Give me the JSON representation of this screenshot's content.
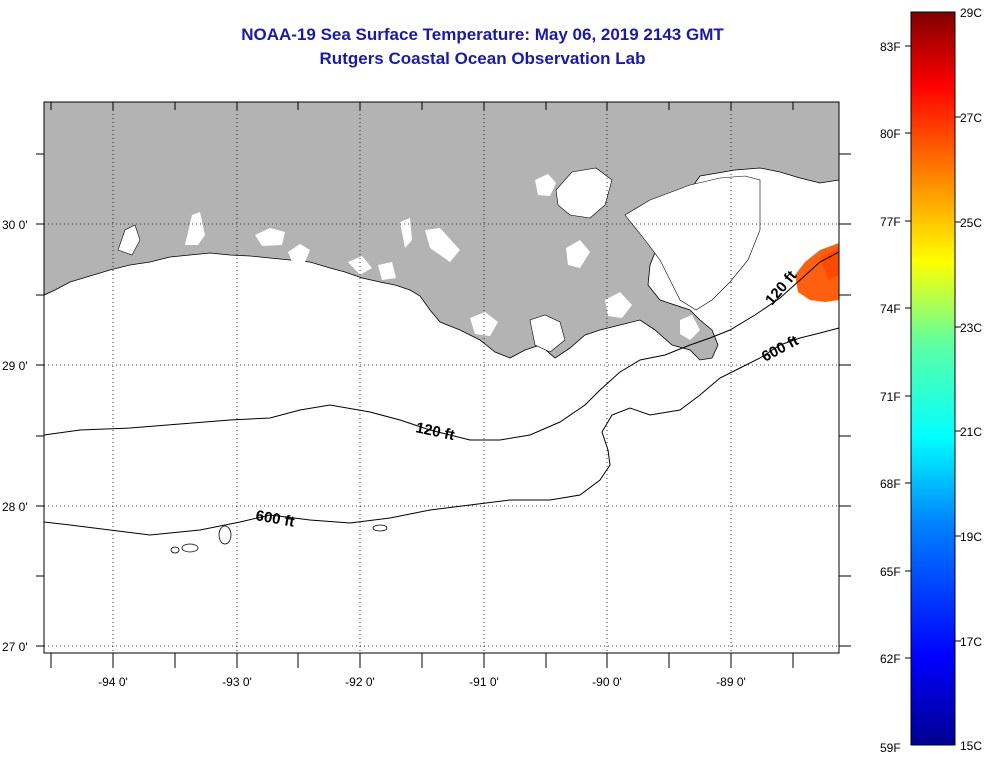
{
  "title": {
    "line1": "NOAA-19 Sea Surface Temperature:  May 06, 2019 2143 GMT",
    "line2": "Rutgers Coastal Ocean Observation Lab"
  },
  "map": {
    "lat_labels": [
      "30 0'",
      "29 0'",
      "28 0'",
      "27 0'"
    ],
    "lon_labels": [
      "-94 0'",
      "-93 0'",
      "-92 0'",
      "-91 0'",
      "-90 0'",
      "-89 0'"
    ],
    "contours": {
      "c120_main": "120 ft",
      "c600_main": "600 ft",
      "c120_east": "120 ft",
      "c600_east": "600 ft"
    },
    "land_color": "#b3b3b3",
    "sst_patch_colors": [
      "#ff5a00",
      "#ff7a10",
      "#ff4000"
    ]
  },
  "colorbar": {
    "fahrenheit": [
      "83F",
      "80F",
      "77F",
      "74F",
      "71F",
      "68F",
      "65F",
      "62F",
      "59F"
    ],
    "celsius": [
      "29C",
      "27C",
      "25C",
      "23C",
      "21C",
      "19C",
      "17C",
      "15C"
    ]
  }
}
